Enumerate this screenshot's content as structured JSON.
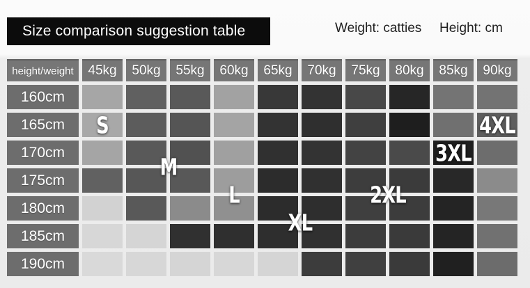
{
  "title": {
    "text": "Size comparison suggestion table",
    "bg": "#0c0c0c",
    "color": "#ffffff"
  },
  "legend": {
    "weight_label": "Weight: catties",
    "height_label": "Height: cm"
  },
  "chart_data": {
    "type": "heatmap",
    "title": "Size comparison suggestion table",
    "corner_label": "height/weight",
    "columns": [
      "45kg",
      "50kg",
      "55kg",
      "60kg",
      "65kg",
      "70kg",
      "75kg",
      "80kg",
      "85kg",
      "90kg"
    ],
    "rows": [
      "160cm",
      "165cm",
      "170cm",
      "175cm",
      "180cm",
      "185cm",
      "190cm"
    ],
    "header_bg": "#767676",
    "row_header_bg": "#6d6d6d",
    "cell_colors": [
      [
        "#a6a6a6",
        "#606060",
        "#595959",
        "#a2a2a2",
        "#383838",
        "#333333",
        "#484848",
        "#262626",
        "#747474",
        "#737373"
      ],
      [
        "#a8a8a8",
        "#5c5c5c",
        "#555555",
        "#a4a4a4",
        "#333333",
        "#2f2f2f",
        "#3f3f3f",
        "#1e1e1e",
        "#707070",
        "#5e5e5e"
      ],
      [
        "#a5a5a5",
        "#595959",
        "#515151",
        "#a0a0a0",
        "#303030",
        "#333333",
        "#434343",
        "#4a4a4a",
        "#1e1e1e",
        "#6d6d6d"
      ],
      [
        "#616161",
        "#575757",
        "#585858",
        "#9d9d9d",
        "#2c2c2c",
        "#303030",
        "#3d3d3d",
        "#3b3b3b",
        "#282828",
        "#8b8b8b"
      ],
      [
        "#d2d2d2",
        "#595959",
        "#8b8b8b",
        "#909090",
        "#2c2c2c",
        "#2e2e2e",
        "#3f3f3f",
        "#3c3c3c",
        "#242424",
        "#787878"
      ],
      [
        "#d7d7d7",
        "#d5d5d5",
        "#303030",
        "#2f2f2f",
        "#2e2e2e",
        "#303030",
        "#3c3c3c",
        "#3a3a3a",
        "#242424",
        "#717171"
      ],
      [
        "#d9d9d9",
        "#d7d7d7",
        "#d5d5d5",
        "#d7d7d7",
        "#d5d5d5",
        "#3c3c3c",
        "#404040",
        "#3a3a3a",
        "#202020",
        "#6c6c6c"
      ]
    ],
    "size_labels": [
      {
        "text": "S",
        "row": "165cm",
        "col": "45kg",
        "row_index": 1,
        "col_index": 0,
        "dx": 0,
        "dy": 0
      },
      {
        "text": "M",
        "row": "170cm-175cm",
        "col": "50kg-55kg",
        "row_index": 2,
        "col_index": 1,
        "dx": 0.5,
        "dy": 0.5
      },
      {
        "text": "L",
        "row": "175cm-180cm",
        "col": "60kg",
        "row_index": 3,
        "col_index": 3,
        "dx": 0,
        "dy": 0.5
      },
      {
        "text": "XL",
        "row": "180cm-185cm",
        "col": "65kg-70kg",
        "row_index": 4,
        "col_index": 4,
        "dx": 0.5,
        "dy": 0.5
      },
      {
        "text": "2XL",
        "row": "175cm-180cm",
        "col": "75kg-80kg",
        "row_index": 3,
        "col_index": 6,
        "dx": 0.5,
        "dy": 0.5
      },
      {
        "text": "3XL",
        "row": "170cm",
        "col": "85kg",
        "row_index": 2,
        "col_index": 8,
        "dx": 0,
        "dy": 0
      },
      {
        "text": "4XL",
        "row": "165cm",
        "col": "90kg",
        "row_index": 1,
        "col_index": 9,
        "dx": 0,
        "dy": 0
      }
    ]
  }
}
